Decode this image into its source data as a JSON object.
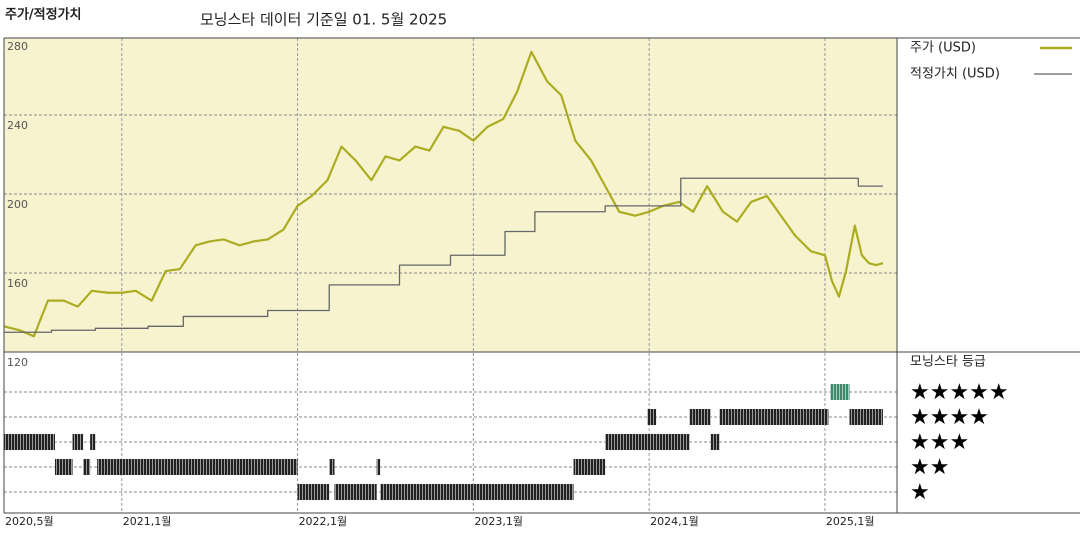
{
  "chart_data": {
    "type": "line",
    "title": "주가/적정가치",
    "subtitle": "모닝스타 데이터 기준일 01. 5월 2025",
    "xlim": [
      2020.33,
      2025.41
    ],
    "xticks": [
      {
        "value": 2020.33,
        "label": "2020,5월"
      },
      {
        "value": 2021,
        "label": "2021,1월"
      },
      {
        "value": 2022,
        "label": "2022,1월"
      },
      {
        "value": 2023,
        "label": "2023,1월"
      },
      {
        "value": 2024,
        "label": "2024,1월"
      },
      {
        "value": 2025,
        "label": "2025,1월"
      }
    ],
    "ylim": [
      120,
      279
    ],
    "yticks": [
      120,
      160,
      200,
      240,
      280
    ],
    "grid": true,
    "background": "#f7f3cf",
    "series": [
      {
        "name": "주가 (USD)",
        "color": "#acac22",
        "x": [
          2020.33,
          2020.42,
          2020.5,
          2020.58,
          2020.67,
          2020.75,
          2020.83,
          2020.92,
          2021,
          2021.08,
          2021.17,
          2021.25,
          2021.33,
          2021.42,
          2021.5,
          2021.58,
          2021.67,
          2021.75,
          2021.83,
          2021.92,
          2022,
          2022.08,
          2022.17,
          2022.25,
          2022.33,
          2022.42,
          2022.5,
          2022.58,
          2022.67,
          2022.75,
          2022.83,
          2022.92,
          2023,
          2023.08,
          2023.17,
          2023.25,
          2023.33,
          2023.42,
          2023.5,
          2023.58,
          2023.67,
          2023.75,
          2023.83,
          2023.92,
          2024,
          2024.08,
          2024.17,
          2024.25,
          2024.33,
          2024.42,
          2024.5,
          2024.58,
          2024.67,
          2024.75,
          2024.83,
          2024.92,
          2025,
          2025.04,
          2025.08,
          2025.12,
          2025.17,
          2025.21,
          2025.25,
          2025.29,
          2025.33
        ],
        "values": [
          133,
          131,
          128,
          146,
          146,
          143,
          151,
          150,
          150,
          151,
          146,
          161,
          162,
          174,
          176,
          177,
          174,
          176,
          177,
          182,
          194,
          199,
          207,
          224,
          217,
          207,
          219,
          217,
          224,
          222,
          234,
          232,
          227,
          234,
          238,
          252,
          272,
          257,
          250,
          227,
          217,
          204,
          191,
          189,
          191,
          194,
          196,
          191,
          204,
          191,
          186,
          196,
          199,
          189,
          179,
          171,
          169,
          156,
          148,
          161,
          184,
          169,
          165,
          164,
          165
        ]
      },
      {
        "name": "적정가치 (USD)",
        "color": "#666666",
        "step": true,
        "x": [
          2020.33,
          2020.6,
          2020.85,
          2021.15,
          2021.35,
          2021.83,
          2022.18,
          2022.58,
          2022.87,
          2023.18,
          2023.35,
          2023.75,
          2024.18,
          2025.19,
          2025.33
        ],
        "values": [
          130,
          131,
          132,
          133,
          138,
          141,
          154,
          164,
          169,
          181,
          191,
          194,
          208,
          204,
          204
        ]
      }
    ],
    "ratings": {
      "title": "모닝스타 등급",
      "labels": [
        "★",
        "★★",
        "★★★",
        "★★★★",
        "★★★★★"
      ],
      "colors": [
        "#222222",
        "#222222",
        "#222222",
        "#222222",
        "#3f8a6a"
      ],
      "segments": [
        {
          "start": 2020.33,
          "end": 2020.62,
          "stars": 3
        },
        {
          "start": 2020.72,
          "end": 2020.78,
          "stars": 3
        },
        {
          "start": 2020.82,
          "end": 2020.85,
          "stars": 3
        },
        {
          "start": 2020.62,
          "end": 2020.72,
          "stars": 2
        },
        {
          "start": 2020.78,
          "end": 2020.82,
          "stars": 2
        },
        {
          "start": 2020.86,
          "end": 2022.0,
          "stars": 2
        },
        {
          "start": 2022.18,
          "end": 2022.21,
          "stars": 2
        },
        {
          "start": 2022.45,
          "end": 2022.47,
          "stars": 2
        },
        {
          "start": 2023.57,
          "end": 2023.75,
          "stars": 2
        },
        {
          "start": 2022.0,
          "end": 2022.18,
          "stars": 1
        },
        {
          "start": 2022.21,
          "end": 2022.45,
          "stars": 1
        },
        {
          "start": 2022.47,
          "end": 2023.57,
          "stars": 1
        },
        {
          "start": 2023.75,
          "end": 2024.23,
          "stars": 3
        },
        {
          "start": 2024.35,
          "end": 2024.4,
          "stars": 3
        },
        {
          "start": 2023.99,
          "end": 2024.04,
          "stars": 4
        },
        {
          "start": 2024.23,
          "end": 2024.35,
          "stars": 4
        },
        {
          "start": 2024.4,
          "end": 2025.02,
          "stars": 4
        },
        {
          "start": 2025.14,
          "end": 2025.33,
          "stars": 4
        },
        {
          "start": 2025.03,
          "end": 2025.14,
          "stars": 5
        }
      ]
    }
  }
}
